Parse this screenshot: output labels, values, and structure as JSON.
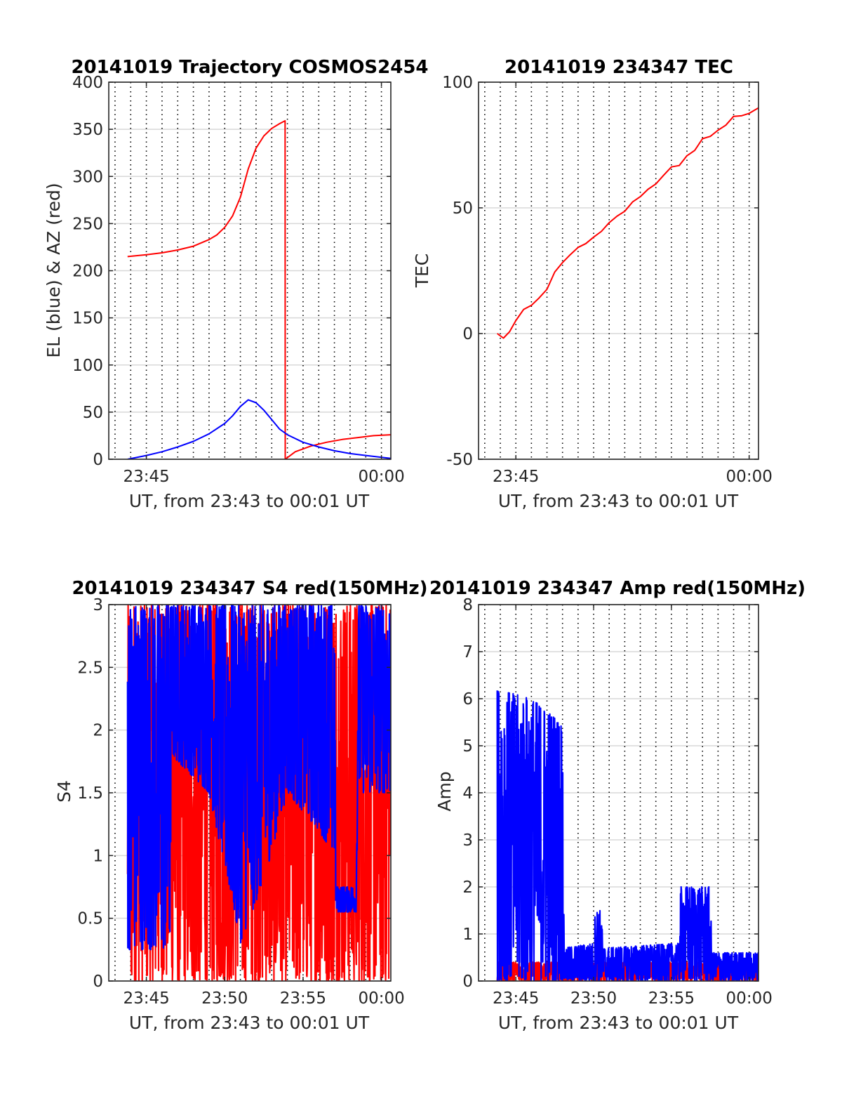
{
  "colors": {
    "red": "#ff0000",
    "blue": "#0000ff",
    "grid_h": "#d8d8d8",
    "grid_v": "#000000",
    "axis": "#262626"
  },
  "chart_data": [
    {
      "type": "line",
      "title": "20141019 Trajectory COSMOS2454",
      "xlabel": "UT, from 23:43 to 00:01 UT",
      "ylabel": "EL (blue) & AZ (red)",
      "xlim_min": [
        -2.4,
        15.6
      ],
      "ylim": [
        0,
        400
      ],
      "yticks": [
        0,
        50,
        100,
        150,
        200,
        250,
        300,
        350,
        400
      ],
      "ytick_labels": [
        "0",
        "50",
        "100",
        "150",
        "200",
        "250",
        "300",
        "350",
        "400"
      ],
      "xticks": [
        0,
        15
      ],
      "xtick_labels": [
        "23:45",
        "00:00"
      ],
      "series": [
        {
          "color": "red",
          "x": [
            -1.2,
            0,
            1,
            2,
            3,
            4,
            4.5,
            5,
            5.5,
            6,
            6.5,
            7,
            7.5,
            8,
            8.5,
            8.85,
            8.86,
            9.5,
            10.5,
            11.5,
            12.5,
            13.5,
            14.5,
            15.6
          ],
          "y": [
            215,
            217,
            219,
            222,
            226,
            233,
            238,
            246,
            258,
            278,
            308,
            330,
            343,
            351,
            356,
            359,
            0,
            8,
            14,
            18,
            21,
            23,
            25,
            26
          ]
        },
        {
          "color": "blue",
          "x": [
            -1.2,
            0,
            1,
            2,
            3,
            4,
            5,
            5.5,
            6,
            6.5,
            7,
            7.5,
            8,
            8.5,
            9,
            10,
            11,
            12,
            13,
            14,
            15.6
          ],
          "y": [
            0,
            4,
            8,
            13,
            19,
            27,
            38,
            46,
            56,
            63,
            60,
            52,
            42,
            32,
            26,
            18,
            13,
            9,
            6,
            4,
            1
          ]
        }
      ]
    },
    {
      "type": "line",
      "title": "20141019 234347 TEC",
      "xlabel": "UT, from 23:43 to 00:01 UT",
      "ylabel": "TEC",
      "xlim_min": [
        -2.4,
        15.6
      ],
      "ylim": [
        -50,
        100
      ],
      "yticks": [
        -50,
        0,
        50,
        100
      ],
      "ytick_labels": [
        "-50",
        "0",
        "50",
        "100"
      ],
      "xticks": [
        0,
        15
      ],
      "xtick_labels": [
        "23:45",
        "00:00"
      ],
      "series": [
        {
          "color": "red",
          "x": [
            -1.2,
            -0.8,
            -0.4,
            0,
            0.5,
            1,
            1.5,
            2,
            2.5,
            3,
            3.5,
            4,
            4.5,
            5,
            5.5,
            6,
            6.5,
            7,
            7.5,
            8,
            8.5,
            9,
            9.5,
            10,
            10.5,
            11,
            11.5,
            12,
            12.5,
            13,
            13.5,
            14,
            14.5,
            15,
            15.6
          ],
          "y": [
            0,
            -2,
            1,
            5,
            9,
            11,
            14,
            18,
            24,
            28,
            31,
            34,
            36,
            38,
            41,
            44,
            47,
            49,
            52,
            54,
            57,
            60,
            63,
            66,
            67,
            71,
            73,
            77,
            78,
            81,
            83,
            86,
            87,
            88,
            90
          ]
        }
      ]
    },
    {
      "type": "line",
      "title": "20141019 234347 S4 red(150MHz)",
      "xlabel": "UT, from 23:43 to 00:01 UT",
      "ylabel": "S4",
      "xlim_min": [
        -2.4,
        15.6
      ],
      "ylim": [
        0,
        3
      ],
      "yticks": [
        0,
        0.5,
        1,
        1.5,
        2,
        2.5,
        3
      ],
      "ytick_labels": [
        "0",
        "0.5",
        "1",
        "1.5",
        "2",
        "2.5",
        "3"
      ],
      "xticks": [
        0,
        5,
        10,
        15
      ],
      "xtick_labels": [
        "23:45",
        "23:50",
        "23:55",
        "00:00"
      ],
      "series": [
        {
          "color": "red",
          "pattern": "noise",
          "env": [
            [
              -1.2,
              0.0,
              3.0
            ],
            [
              3.5,
              0.0,
              3.0
            ],
            [
              6.0,
              0.0,
              3.0
            ],
            [
              9.5,
              0.0,
              3.0
            ],
            [
              12.0,
              0.0,
              3.0
            ],
            [
              15.6,
              0.0,
              3.0
            ]
          ]
        },
        {
          "color": "blue",
          "pattern": "noise",
          "env": [
            [
              -1.2,
              0.25,
              3.0
            ],
            [
              1.5,
              0.25,
              3.0
            ],
            [
              1.6,
              1.8,
              3.0
            ],
            [
              4.0,
              1.5,
              3.0
            ],
            [
              6.0,
              0.3,
              3.0
            ],
            [
              7.5,
              0.8,
              3.0
            ],
            [
              9.0,
              1.5,
              3.0
            ],
            [
              11.0,
              1.2,
              3.0
            ],
            [
              12.0,
              1.0,
              3.0
            ],
            [
              12.1,
              0.55,
              0.75
            ],
            [
              13.4,
              0.55,
              0.75
            ],
            [
              13.5,
              1.5,
              3.0
            ],
            [
              15.6,
              1.5,
              3.0
            ]
          ]
        }
      ]
    },
    {
      "type": "line",
      "title": "20141019 234347 Amp red(150MHz)",
      "xlabel": "UT, from 23:43 to 00:01 UT",
      "ylabel": "Amp",
      "xlim_min": [
        -2.4,
        15.6
      ],
      "ylim": [
        0,
        8
      ],
      "yticks": [
        0,
        1,
        2,
        3,
        4,
        5,
        6,
        7,
        8
      ],
      "ytick_labels": [
        "0",
        "1",
        "2",
        "3",
        "4",
        "5",
        "6",
        "7",
        "8"
      ],
      "xticks": [
        0,
        5,
        10,
        15
      ],
      "xtick_labels": [
        "23:45",
        "23:50",
        "23:55",
        "00:00"
      ],
      "series": [
        {
          "color": "red",
          "pattern": "noise",
          "env": [
            [
              -1.2,
              0.0,
              0.4
            ],
            [
              15.6,
              0.0,
              0.4
            ]
          ]
        },
        {
          "color": "blue",
          "pattern": "noise",
          "env": [
            [
              -1.2,
              0.0,
              6.2
            ],
            [
              1.0,
              0.0,
              6.0
            ],
            [
              3.0,
              0.0,
              5.5
            ],
            [
              3.1,
              0.0,
              0.7
            ],
            [
              5.0,
              0.0,
              0.8
            ],
            [
              5.1,
              0.0,
              1.5
            ],
            [
              5.5,
              0.0,
              1.5
            ],
            [
              5.6,
              0.0,
              0.7
            ],
            [
              10.5,
              0.0,
              0.8
            ],
            [
              10.6,
              0.0,
              2.0
            ],
            [
              12.5,
              0.0,
              2.0
            ],
            [
              12.6,
              0.0,
              0.6
            ],
            [
              15.6,
              0.0,
              0.6
            ]
          ]
        }
      ]
    }
  ]
}
